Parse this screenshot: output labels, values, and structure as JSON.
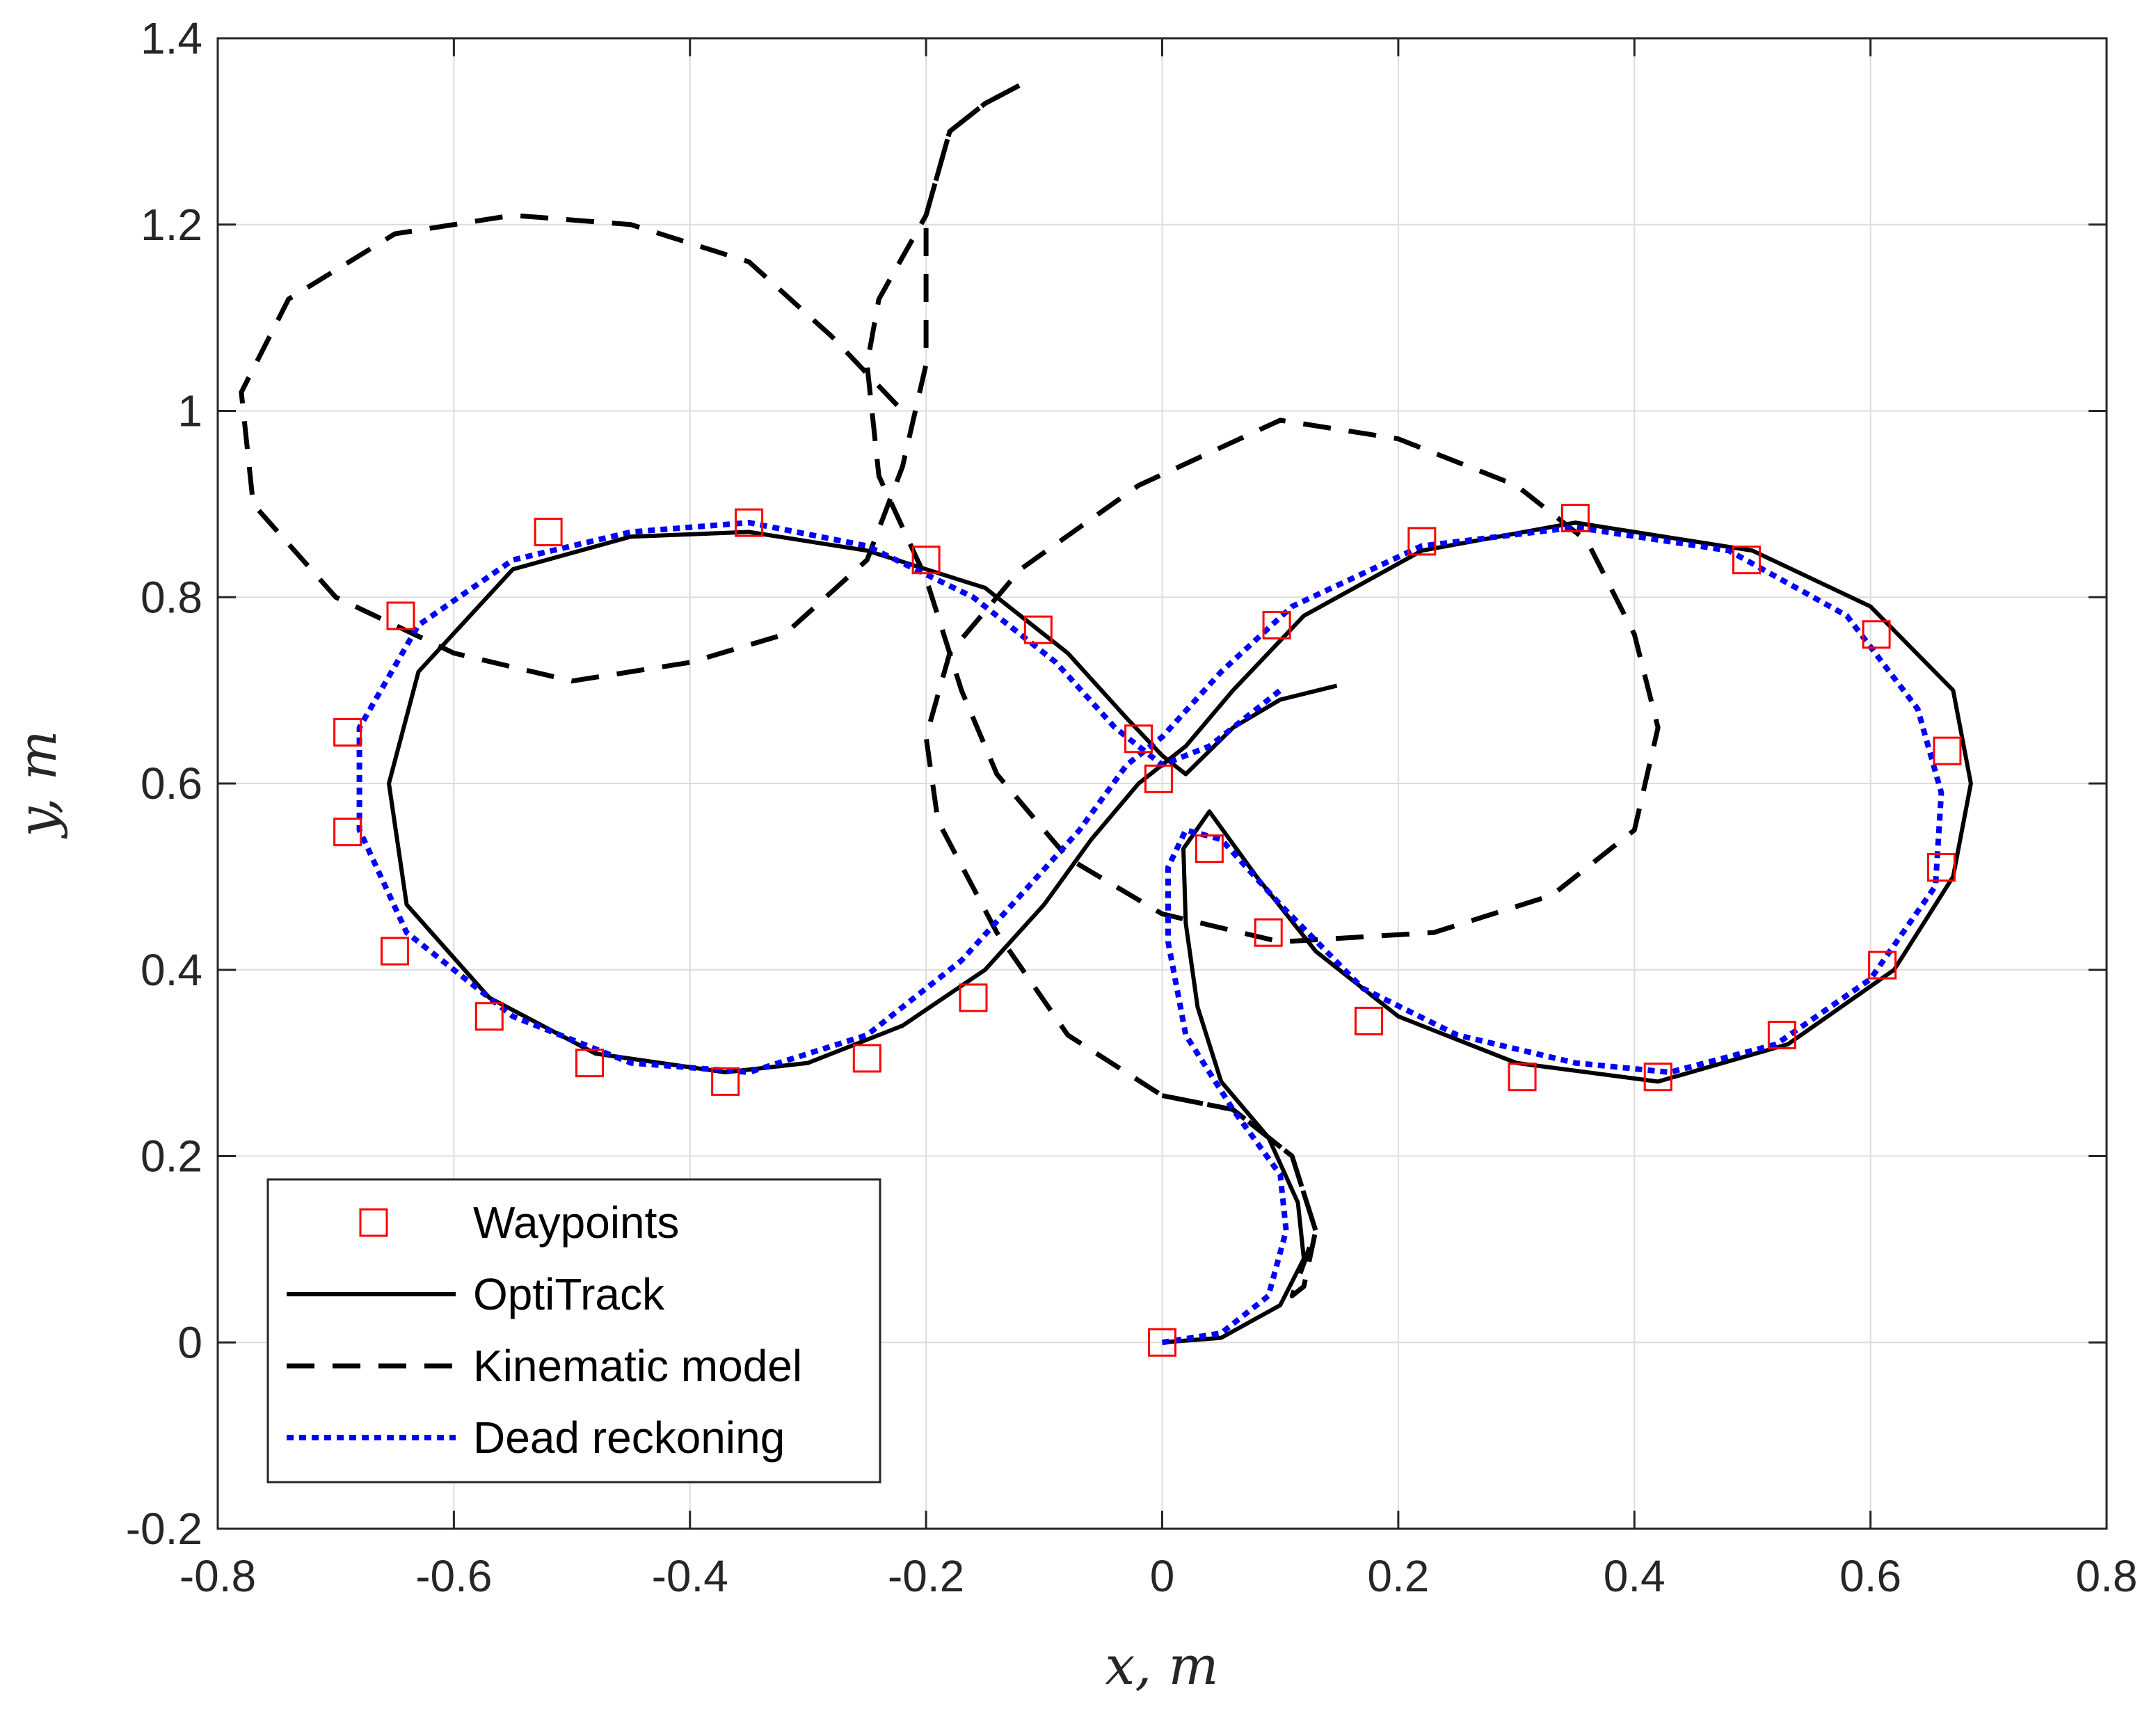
{
  "chart_data": {
    "type": "line",
    "title": "",
    "xlabel": "x, m",
    "ylabel": "y, m",
    "xlim": [
      -0.8,
      0.8
    ],
    "ylim": [
      -0.2,
      1.4
    ],
    "xticks": [
      -0.8,
      -0.6,
      -0.4,
      -0.2,
      0,
      0.2,
      0.4,
      0.6,
      0.8
    ],
    "xtick_labels": [
      "-0.8",
      "-0.6",
      "-0.4",
      "-0.2",
      "0",
      "0.2",
      "0.4",
      "0.6",
      "0.8"
    ],
    "yticks": [
      -0.2,
      0,
      0.2,
      0.4,
      0.6,
      0.8,
      1,
      1.2,
      1.4
    ],
    "ytick_labels": [
      "-0.2",
      "0",
      "0.2",
      "0.4",
      "0.6",
      "0.8",
      "1",
      "1.2",
      "1.4"
    ],
    "grid": true,
    "legend_position": "bottom-left",
    "colors": {
      "waypoints": "#ff0000",
      "optitrack": "#000000",
      "kinematic": "#000000",
      "dead_reckoning": "#0000ff",
      "grid": "#dcdcdc",
      "axes": "#262626"
    },
    "series": [
      {
        "name": "Waypoints",
        "style": "markers",
        "points": [
          [
            0,
            0
          ],
          [
            0.04,
            0.53
          ],
          [
            0.09,
            0.44
          ],
          [
            0.175,
            0.345
          ],
          [
            0.305,
            0.285
          ],
          [
            0.42,
            0.285
          ],
          [
            0.525,
            0.33
          ],
          [
            0.61,
            0.405
          ],
          [
            0.66,
            0.51
          ],
          [
            0.665,
            0.635
          ],
          [
            0.605,
            0.76
          ],
          [
            0.495,
            0.84
          ],
          [
            0.35,
            0.885
          ],
          [
            0.22,
            0.86
          ],
          [
            0.097,
            0.77
          ],
          [
            -0.003,
            0.605
          ],
          [
            -0.02,
            0.648
          ],
          [
            -0.105,
            0.765
          ],
          [
            -0.2,
            0.84
          ],
          [
            -0.35,
            0.88
          ],
          [
            -0.52,
            0.87
          ],
          [
            -0.645,
            0.78
          ],
          [
            -0.69,
            0.655
          ],
          [
            -0.69,
            0.548
          ],
          [
            -0.65,
            0.42
          ],
          [
            -0.57,
            0.35
          ],
          [
            -0.485,
            0.3
          ],
          [
            -0.37,
            0.28
          ],
          [
            -0.25,
            0.305
          ],
          [
            -0.16,
            0.37
          ]
        ]
      },
      {
        "name": "OptiTrack",
        "style": "solid",
        "points": [
          [
            0,
            0
          ],
          [
            0.05,
            0.005
          ],
          [
            0.1,
            0.04
          ],
          [
            0.12,
            0.09
          ],
          [
            0.115,
            0.15
          ],
          [
            0.09,
            0.22
          ],
          [
            0.05,
            0.28
          ],
          [
            0.03,
            0.36
          ],
          [
            0.02,
            0.45
          ],
          [
            0.018,
            0.53
          ],
          [
            0.04,
            0.57
          ],
          [
            0.08,
            0.5
          ],
          [
            0.13,
            0.42
          ],
          [
            0.2,
            0.35
          ],
          [
            0.3,
            0.3
          ],
          [
            0.42,
            0.28
          ],
          [
            0.53,
            0.32
          ],
          [
            0.62,
            0.4
          ],
          [
            0.67,
            0.5
          ],
          [
            0.685,
            0.6
          ],
          [
            0.67,
            0.7
          ],
          [
            0.6,
            0.79
          ],
          [
            0.5,
            0.85
          ],
          [
            0.35,
            0.88
          ],
          [
            0.22,
            0.85
          ],
          [
            0.12,
            0.78
          ],
          [
            0.06,
            0.7
          ],
          [
            0.02,
            0.64
          ],
          [
            -0.02,
            0.6
          ],
          [
            -0.06,
            0.54
          ],
          [
            -0.1,
            0.47
          ],
          [
            -0.15,
            0.4
          ],
          [
            -0.22,
            0.34
          ],
          [
            -0.3,
            0.3
          ],
          [
            -0.37,
            0.29
          ],
          [
            -0.48,
            0.31
          ],
          [
            -0.57,
            0.37
          ],
          [
            -0.64,
            0.47
          ],
          [
            -0.655,
            0.6
          ],
          [
            -0.63,
            0.72
          ],
          [
            -0.55,
            0.83
          ],
          [
            -0.45,
            0.865
          ],
          [
            -0.35,
            0.87
          ],
          [
            -0.25,
            0.85
          ],
          [
            -0.15,
            0.81
          ],
          [
            -0.08,
            0.74
          ],
          [
            -0.03,
            0.67
          ],
          [
            0,
            0.63
          ],
          [
            0.02,
            0.61
          ],
          [
            0.06,
            0.66
          ],
          [
            0.1,
            0.69
          ],
          [
            0.148,
            0.705
          ]
        ]
      },
      {
        "name": "Kinematic model",
        "style": "dashed",
        "points": [
          [
            0,
            0.265
          ],
          [
            0.06,
            0.25
          ],
          [
            0.11,
            0.2
          ],
          [
            0.13,
            0.12
          ],
          [
            0.12,
            0.06
          ],
          [
            0.11,
            0.05
          ],
          [
            0.13,
            0.12
          ],
          [
            0.11,
            0.2
          ],
          [
            0.06,
            0.25
          ],
          [
            0,
            0.265
          ],
          [
            -0.08,
            0.33
          ],
          [
            -0.14,
            0.44
          ],
          [
            -0.19,
            0.56
          ],
          [
            -0.2,
            0.65
          ],
          [
            -0.18,
            0.74
          ],
          [
            -0.12,
            0.83
          ],
          [
            -0.02,
            0.92
          ],
          [
            0.1,
            0.99
          ],
          [
            0.2,
            0.97
          ],
          [
            0.3,
            0.92
          ],
          [
            0.36,
            0.86
          ],
          [
            0.4,
            0.76
          ],
          [
            0.42,
            0.66
          ],
          [
            0.4,
            0.55
          ],
          [
            0.33,
            0.48
          ],
          [
            0.23,
            0.44
          ],
          [
            0.1,
            0.43
          ],
          [
            0,
            0.46
          ],
          [
            -0.08,
            0.52
          ],
          [
            -0.14,
            0.61
          ],
          [
            -0.17,
            0.7
          ],
          [
            -0.19,
            0.78
          ],
          [
            -0.2,
            0.82
          ],
          [
            -0.24,
            0.93
          ],
          [
            -0.25,
            1.05
          ],
          [
            -0.24,
            1.12
          ],
          [
            -0.2,
            1.21
          ],
          [
            -0.18,
            1.3
          ],
          [
            -0.15,
            1.33
          ],
          [
            -0.12,
            1.35
          ],
          [
            -0.15,
            1.33
          ],
          [
            -0.18,
            1.3
          ],
          [
            -0.2,
            1.21
          ],
          [
            -0.2,
            1.05
          ],
          [
            -0.22,
            0.94
          ],
          [
            -0.25,
            0.84
          ],
          [
            -0.32,
            0.76
          ],
          [
            -0.4,
            0.73
          ],
          [
            -0.5,
            0.71
          ],
          [
            -0.6,
            0.74
          ],
          [
            -0.7,
            0.8
          ],
          [
            -0.77,
            0.9
          ],
          [
            -0.78,
            1.02
          ],
          [
            -0.74,
            1.12
          ],
          [
            -0.65,
            1.19
          ],
          [
            -0.55,
            1.21
          ],
          [
            -0.45,
            1.2
          ],
          [
            -0.35,
            1.16
          ],
          [
            -0.28,
            1.08
          ],
          [
            -0.22,
            1
          ]
        ]
      },
      {
        "name": "Dead reckoning",
        "style": "dotted",
        "points": [
          [
            0,
            0
          ],
          [
            0.05,
            0.01
          ],
          [
            0.09,
            0.05
          ],
          [
            0.105,
            0.12
          ],
          [
            0.1,
            0.18
          ],
          [
            0.06,
            0.25
          ],
          [
            0.02,
            0.33
          ],
          [
            0.005,
            0.43
          ],
          [
            0.005,
            0.51
          ],
          [
            0.02,
            0.55
          ],
          [
            0.05,
            0.54
          ],
          [
            0.1,
            0.47
          ],
          [
            0.17,
            0.38
          ],
          [
            0.25,
            0.33
          ],
          [
            0.35,
            0.3
          ],
          [
            0.43,
            0.29
          ],
          [
            0.52,
            0.32
          ],
          [
            0.6,
            0.39
          ],
          [
            0.655,
            0.49
          ],
          [
            0.66,
            0.59
          ],
          [
            0.64,
            0.68
          ],
          [
            0.58,
            0.78
          ],
          [
            0.48,
            0.85
          ],
          [
            0.35,
            0.875
          ],
          [
            0.22,
            0.855
          ],
          [
            0.11,
            0.79
          ],
          [
            0.05,
            0.72
          ],
          [
            0,
            0.65
          ],
          [
            -0.03,
            0.62
          ],
          [
            -0.07,
            0.55
          ],
          [
            -0.12,
            0.48
          ],
          [
            -0.17,
            0.41
          ],
          [
            -0.25,
            0.33
          ],
          [
            -0.35,
            0.29
          ],
          [
            -0.45,
            0.3
          ],
          [
            -0.55,
            0.35
          ],
          [
            -0.64,
            0.44
          ],
          [
            -0.68,
            0.55
          ],
          [
            -0.68,
            0.66
          ],
          [
            -0.63,
            0.77
          ],
          [
            -0.55,
            0.84
          ],
          [
            -0.45,
            0.87
          ],
          [
            -0.35,
            0.88
          ],
          [
            -0.25,
            0.855
          ],
          [
            -0.16,
            0.8
          ],
          [
            -0.09,
            0.73
          ],
          [
            -0.04,
            0.66
          ],
          [
            0,
            0.62
          ],
          [
            0.04,
            0.64
          ],
          [
            0.1,
            0.7
          ]
        ]
      }
    ]
  }
}
